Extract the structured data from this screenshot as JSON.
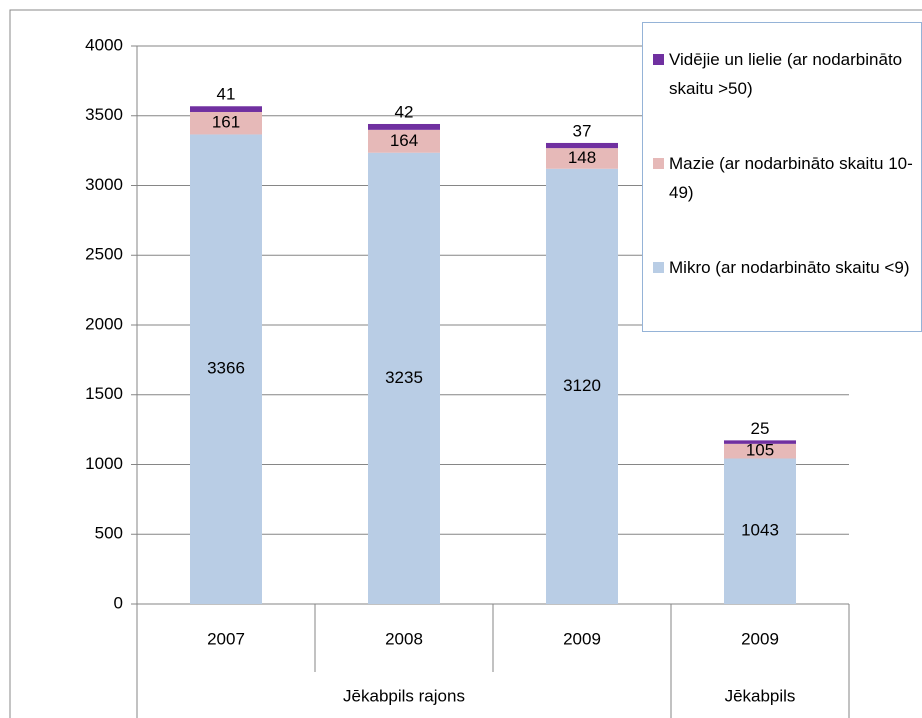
{
  "chart_data": {
    "type": "stacked_bar",
    "category_groups": [
      {
        "label": "Jēkabpils rajons",
        "categories": [
          "2007",
          "2008",
          "2009"
        ]
      },
      {
        "label": "Jēkabpils",
        "categories": [
          "2009"
        ]
      }
    ],
    "series": [
      {
        "name": "Mikro (ar nodarbināto skaitu <9)",
        "color": "#b9cde5",
        "values": [
          3366,
          3235,
          3120,
          1043
        ]
      },
      {
        "name": "Mazie (ar nodarbināto skaitu 10-49)",
        "color": "#e6b9b8",
        "values": [
          161,
          164,
          148,
          105
        ]
      },
      {
        "name": "Vidējie un lielie (ar nodarbināto skaitu >50)",
        "color": "#7030a0",
        "values": [
          41,
          42,
          37,
          25
        ]
      }
    ],
    "ylim": [
      0,
      4000
    ],
    "yticks": [
      0,
      500,
      1000,
      1500,
      2000,
      2500,
      3000,
      3500,
      4000
    ],
    "grid": true,
    "legend": "top-right"
  }
}
